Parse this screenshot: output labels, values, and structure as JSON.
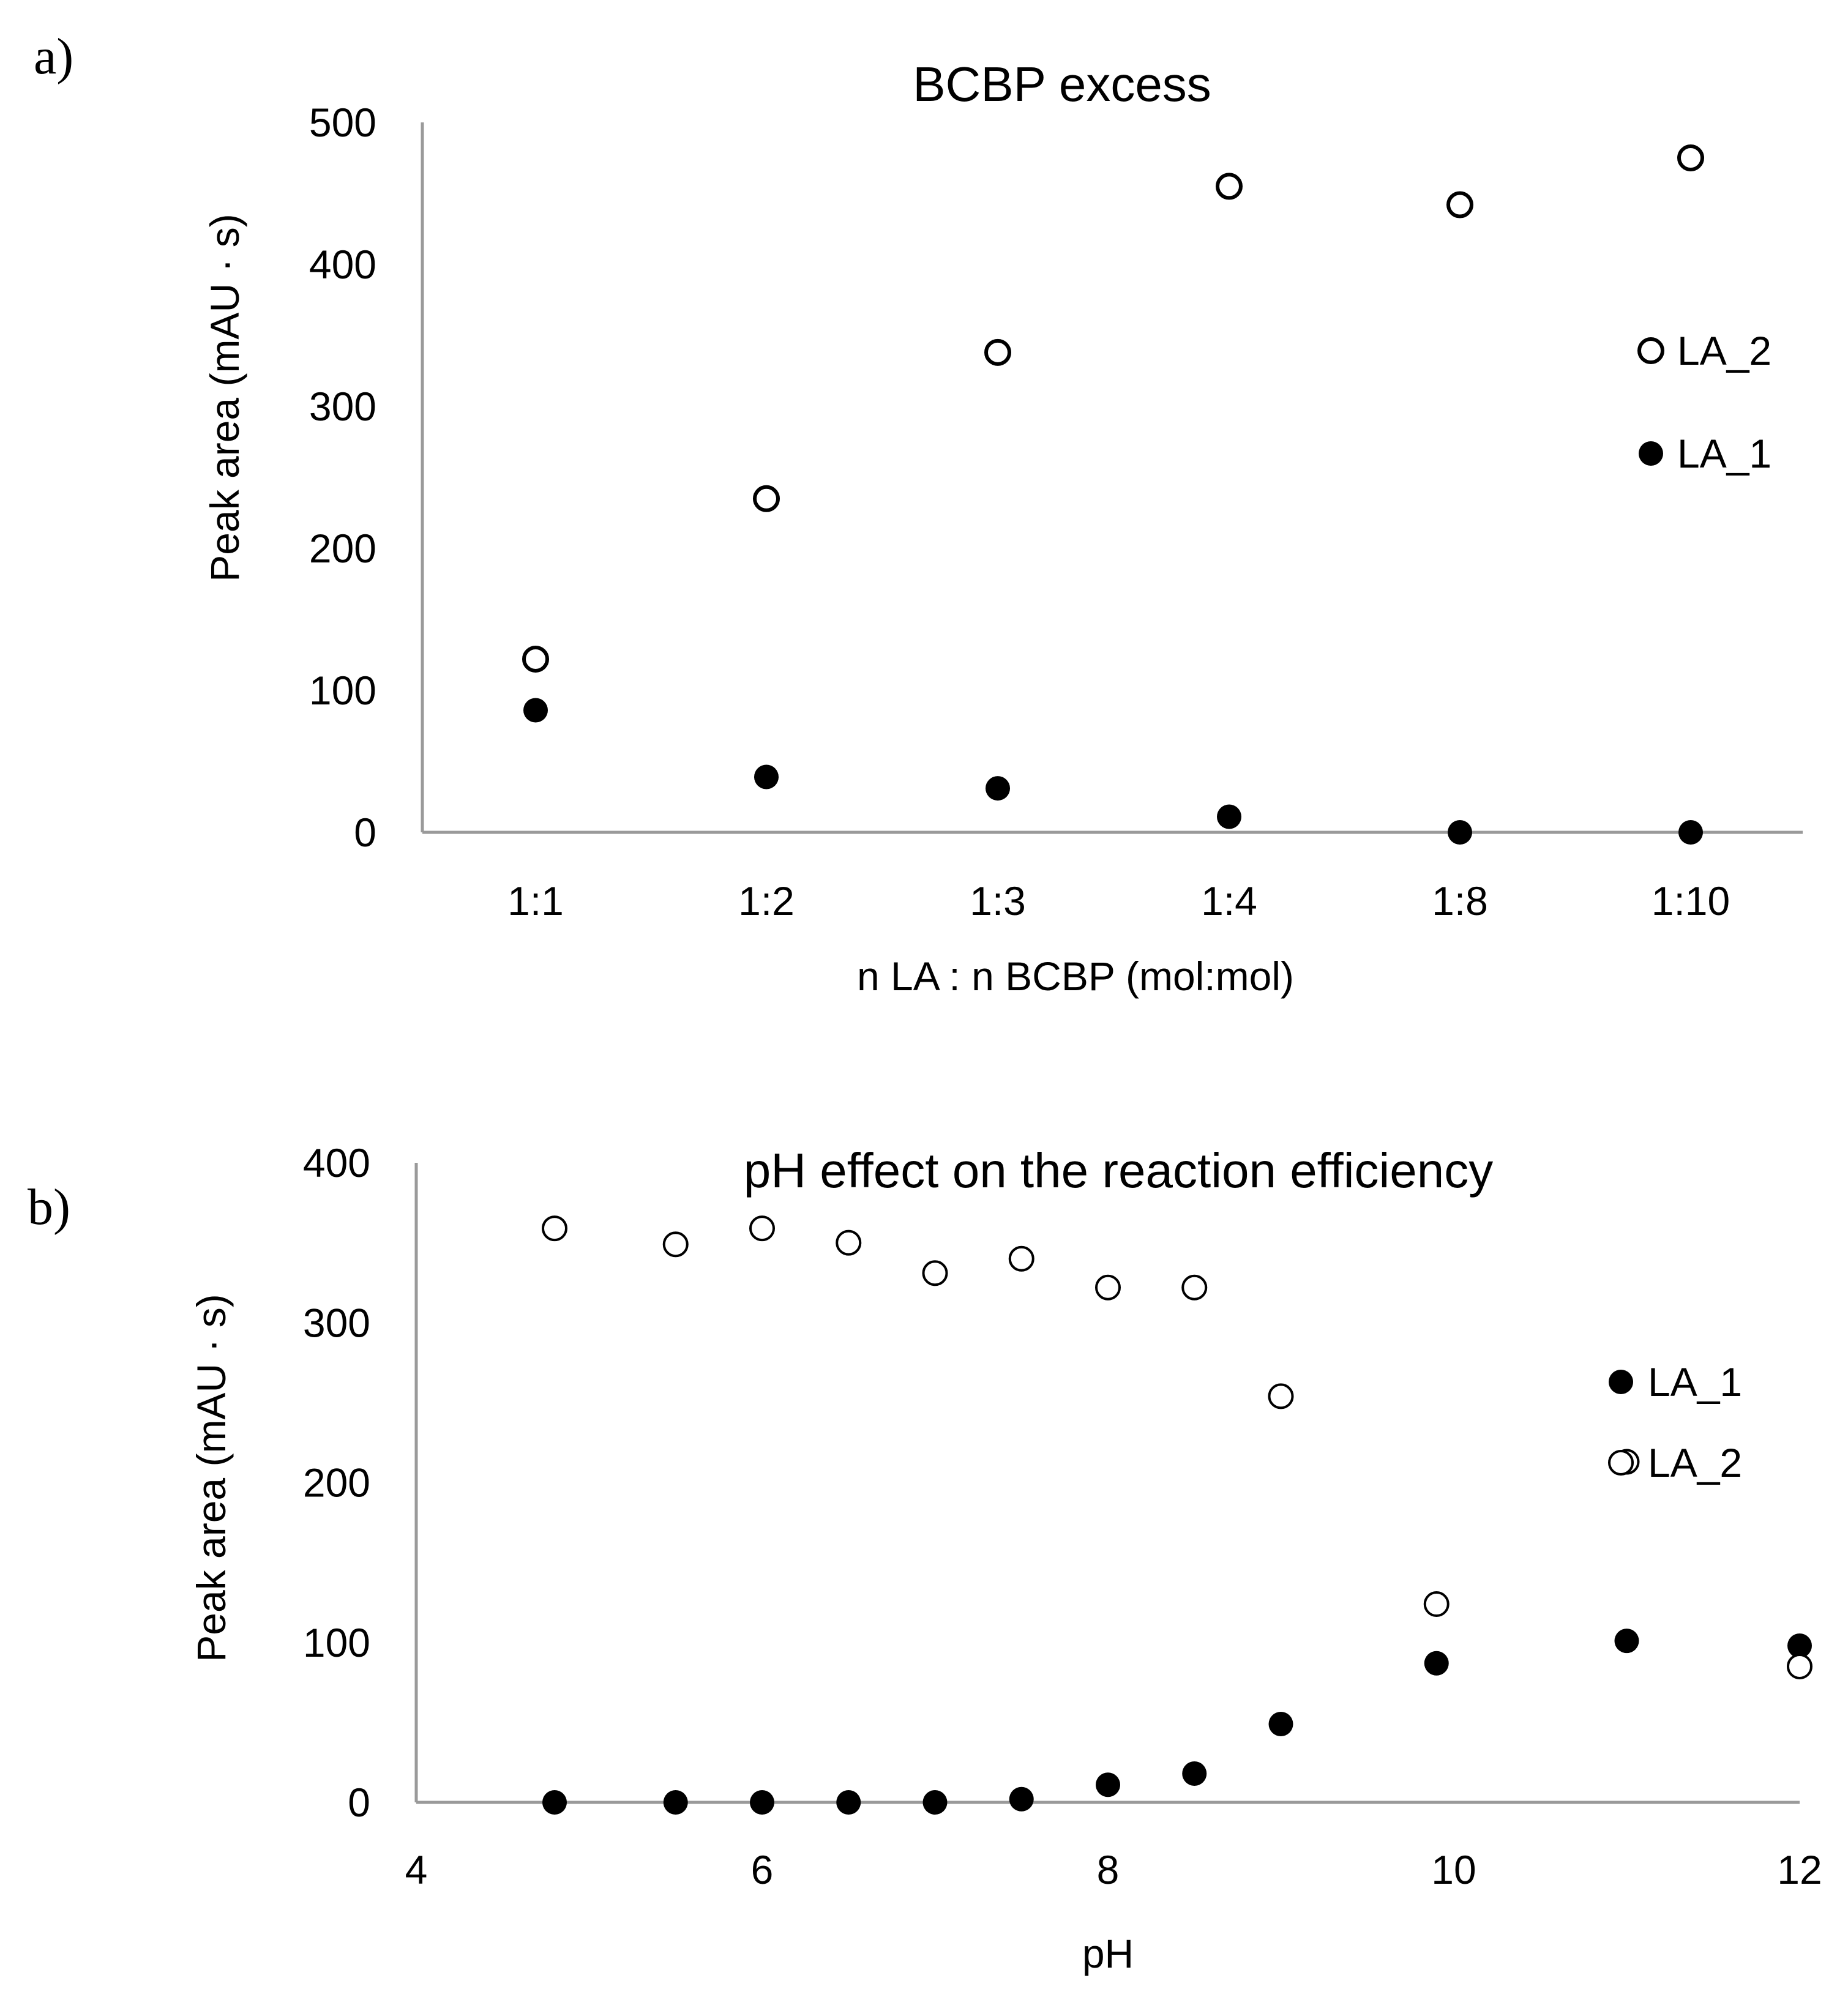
{
  "chart_data": [
    {
      "panel_label": "a)",
      "type": "scatter",
      "title": "BCBP excess",
      "xlabel": "n LA : n BCBP (mol:mol)",
      "ylabel": "Peak area (mAU · s)",
      "categories": [
        "1:1",
        "1:2",
        "1:3",
        "1:4",
        "1:8",
        "1:10"
      ],
      "ylim": [
        0,
        500
      ],
      "yticks": [
        "0",
        "100",
        "200",
        "300",
        "400",
        "500"
      ],
      "grid": false,
      "legend_position": "right",
      "series": [
        {
          "name": "LA_2",
          "marker": "open-circle",
          "values": [
            122,
            235,
            338,
            455,
            442,
            475
          ]
        },
        {
          "name": "LA_1",
          "marker": "filled-circle",
          "values": [
            86,
            39,
            31,
            11,
            0,
            0
          ]
        }
      ]
    },
    {
      "panel_label": "b)",
      "type": "scatter",
      "title": "pH effect on the reaction efficiency",
      "xlabel": "pH",
      "ylabel": "Peak area  (mAU · s)",
      "xlim": [
        4,
        12
      ],
      "xticks": [
        "4",
        "6",
        "8",
        "10",
        "12"
      ],
      "ylim": [
        0,
        400
      ],
      "yticks": [
        "0",
        "100",
        "200",
        "300",
        "400"
      ],
      "grid": false,
      "legend_position": "right",
      "series": [
        {
          "name": "LA_1",
          "marker": "filled-circle",
          "x": [
            4.8,
            5.5,
            6.0,
            6.5,
            7.0,
            7.5,
            8.0,
            8.5,
            9.0,
            9.9,
            11.0,
            12.0
          ],
          "y": [
            0,
            0,
            0,
            0,
            0,
            2,
            11,
            18,
            49,
            87,
            101,
            98
          ]
        },
        {
          "name": "LA_2",
          "marker": "open-circle",
          "x": [
            4.8,
            5.5,
            6.0,
            6.5,
            7.0,
            7.5,
            8.0,
            8.5,
            9.0,
            9.9,
            11.0,
            12.0
          ],
          "y": [
            359,
            349,
            359,
            350,
            331,
            340,
            322,
            322,
            254,
            124,
            213,
            85
          ]
        }
      ]
    }
  ]
}
